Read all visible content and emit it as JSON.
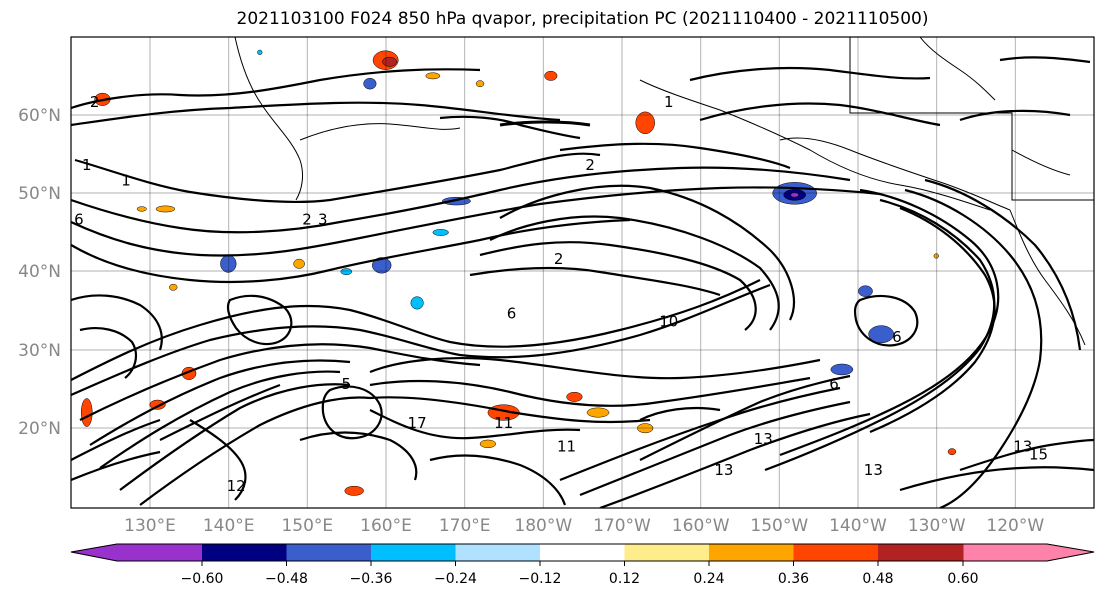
{
  "title": "2021103100 F024 850 hPa qvapor, precipitation PC (2021110400 - 2021110500)",
  "latitude_labels": [
    "60°N",
    "50°N",
    "40°N",
    "30°N",
    "20°N"
  ],
  "longitude_labels": [
    "130°E",
    "140°E",
    "150°E",
    "160°E",
    "170°E",
    "180°W",
    "170°W",
    "160°W",
    "150°W",
    "140°W",
    "130°W",
    "120°W"
  ],
  "colorbar": {
    "colors": [
      "#9932cc",
      "#000080",
      "#3a5fcd",
      "#00bfff",
      "#b0e2ff",
      "#ffffff",
      "#ffec8b",
      "#ffa500",
      "#ff4500",
      "#b22222",
      "#ff82ab"
    ],
    "tick_labels": [
      "−0.60",
      "−0.48",
      "−0.36",
      "−0.24",
      "−0.12",
      "0.12",
      "0.24",
      "0.36",
      "0.48",
      "0.60"
    ],
    "extend": "both"
  },
  "contour_labels": [
    {
      "text": "2",
      "lon": 123,
      "lat": 61
    },
    {
      "text": "1",
      "lon": 196,
      "lat": 61
    },
    {
      "text": "1",
      "lon": 122,
      "lat": 53
    },
    {
      "text": "1",
      "lon": 127,
      "lat": 51
    },
    {
      "text": "2",
      "lon": 186,
      "lat": 53
    },
    {
      "text": "3",
      "lon": 152,
      "lat": 46
    },
    {
      "text": "2",
      "lon": 150,
      "lat": 46
    },
    {
      "text": "2",
      "lon": 182,
      "lat": 41
    },
    {
      "text": "6",
      "lon": 121,
      "lat": 46
    },
    {
      "text": "6",
      "lon": 176,
      "lat": 34
    },
    {
      "text": "10",
      "lon": 196,
      "lat": 33
    },
    {
      "text": "6",
      "lon": 225,
      "lat": 31
    },
    {
      "text": "6",
      "lon": 217,
      "lat": 25
    },
    {
      "text": "13",
      "lon": 208,
      "lat": 18
    },
    {
      "text": "13",
      "lon": 203,
      "lat": 14
    },
    {
      "text": "13",
      "lon": 222,
      "lat": 14
    },
    {
      "text": "11",
      "lon": 183,
      "lat": 17
    },
    {
      "text": "11",
      "lon": 175,
      "lat": 20
    },
    {
      "text": "17",
      "lon": 164,
      "lat": 20
    },
    {
      "text": "12",
      "lon": 141,
      "lat": 12
    },
    {
      "text": "13",
      "lon": 241,
      "lat": 17
    },
    {
      "text": "15",
      "lon": 243,
      "lat": 16
    },
    {
      "text": "5",
      "lon": 155,
      "lat": 25
    }
  ],
  "precip_patches": [
    {
      "lon": 132,
      "lat": 48,
      "rx": 1.2,
      "ry": 0.4,
      "level": "0.24"
    },
    {
      "lon": 129,
      "lat": 48,
      "rx": 0.6,
      "ry": 0.3,
      "level": "0.24"
    },
    {
      "lon": 124,
      "lat": 62,
      "rx": 1.0,
      "ry": 0.8,
      "level": "0.36"
    },
    {
      "lon": 160,
      "lat": 67,
      "rx": 1.6,
      "ry": 1.2,
      "level": "0.36"
    },
    {
      "lon": 160.5,
      "lat": 66.8,
      "rx": 0.9,
      "ry": 0.6,
      "level": "0.48"
    },
    {
      "lon": 158,
      "lat": 64,
      "rx": 0.8,
      "ry": 0.7,
      "level": "-0.36"
    },
    {
      "lon": 166,
      "lat": 65,
      "rx": 0.9,
      "ry": 0.4,
      "level": "0.24"
    },
    {
      "lon": 172,
      "lat": 64,
      "rx": 0.5,
      "ry": 0.4,
      "level": "0.24"
    },
    {
      "lon": 181,
      "lat": 65,
      "rx": 0.8,
      "ry": 0.6,
      "level": "0.36"
    },
    {
      "lon": 193,
      "lat": 59,
      "rx": 1.2,
      "ry": 1.4,
      "level": "0.36"
    },
    {
      "lon": 144,
      "lat": 68,
      "rx": 0.3,
      "ry": 0.3,
      "level": "-0.24"
    },
    {
      "lon": 169,
      "lat": 49,
      "rx": 1.8,
      "ry": 0.5,
      "level": "-0.36"
    },
    {
      "lon": 167,
      "lat": 45,
      "rx": 1.0,
      "ry": 0.4,
      "level": "-0.24"
    },
    {
      "lon": 140,
      "lat": 41,
      "rx": 1.0,
      "ry": 1.1,
      "level": "-0.36"
    },
    {
      "lon": 149,
      "lat": 41,
      "rx": 0.7,
      "ry": 0.6,
      "level": "0.24"
    },
    {
      "lon": 159.5,
      "lat": 40.8,
      "rx": 1.2,
      "ry": 1.0,
      "level": "-0.36"
    },
    {
      "lon": 164,
      "lat": 36,
      "rx": 0.8,
      "ry": 0.8,
      "level": "-0.24"
    },
    {
      "lon": 212,
      "lat": 50,
      "rx": 2.8,
      "ry": 1.4,
      "level": "-0.36"
    },
    {
      "lon": 212,
      "lat": 49.8,
      "rx": 1.4,
      "ry": 0.7,
      "level": "-0.48"
    },
    {
      "lon": 212,
      "lat": 49.8,
      "rx": 0.5,
      "ry": 0.3,
      "level": "-0.60"
    },
    {
      "lon": 221,
      "lat": 37.5,
      "rx": 0.9,
      "ry": 0.7,
      "level": "-0.36"
    },
    {
      "lon": 223,
      "lat": 32,
      "rx": 1.6,
      "ry": 1.1,
      "level": "-0.36"
    },
    {
      "lon": 218,
      "lat": 27.5,
      "rx": 1.4,
      "ry": 0.7,
      "level": "-0.36"
    },
    {
      "lon": 230,
      "lat": 42,
      "rx": 0.3,
      "ry": 0.3,
      "level": "0.24"
    },
    {
      "lon": 175,
      "lat": 22,
      "rx": 2.0,
      "ry": 1.0,
      "level": "0.36"
    },
    {
      "lon": 184,
      "lat": 24,
      "rx": 1.0,
      "ry": 0.6,
      "level": "0.36"
    },
    {
      "lon": 187,
      "lat": 22,
      "rx": 1.4,
      "ry": 0.6,
      "level": "0.24"
    },
    {
      "lon": 193,
      "lat": 20,
      "rx": 1.0,
      "ry": 0.6,
      "level": "0.24"
    },
    {
      "lon": 131,
      "lat": 23,
      "rx": 1.0,
      "ry": 0.6,
      "level": "0.36"
    },
    {
      "lon": 135,
      "lat": 27,
      "rx": 0.9,
      "ry": 0.8,
      "level": "0.36"
    },
    {
      "lon": 122,
      "lat": 22,
      "rx": 0.7,
      "ry": 1.8,
      "level": "0.36"
    },
    {
      "lon": 156,
      "lat": 12,
      "rx": 1.2,
      "ry": 0.6,
      "level": "0.36"
    },
    {
      "lon": 173,
      "lat": 18,
      "rx": 1.0,
      "ry": 0.5,
      "level": "0.24"
    },
    {
      "lon": 155,
      "lat": 40,
      "rx": 0.7,
      "ry": 0.4,
      "level": "-0.24"
    },
    {
      "lon": 133,
      "lat": 38,
      "rx": 0.5,
      "ry": 0.4,
      "level": "0.24"
    },
    {
      "lon": 276,
      "lat": 61,
      "rx": 0.8,
      "ry": 1.1,
      "level": "0.36"
    },
    {
      "lon": 275.8,
      "lat": 61,
      "rx": 0.45,
      "ry": 0.7,
      "level": "0.48"
    },
    {
      "lon": 271,
      "lat": 59,
      "rx": 1.0,
      "ry": 0.6,
      "level": "-0.36"
    },
    {
      "lon": 279,
      "lat": 58,
      "rx": 0.7,
      "ry": 1.2,
      "level": "-0.36"
    },
    {
      "lon": 255,
      "lat": 67,
      "rx": 0.4,
      "ry": 0.4,
      "level": "-0.24"
    },
    {
      "lon": 268,
      "lat": 64,
      "rx": 0.8,
      "ry": 0.6,
      "level": "-0.24"
    },
    {
      "lon": 266,
      "lat": 63,
      "rx": 0.8,
      "ry": 0.4,
      "level": "0.24"
    },
    {
      "lon": 258,
      "lat": 51,
      "rx": 0.4,
      "ry": 0.3,
      "level": "-0.24"
    },
    {
      "lon": 232,
      "lat": 17,
      "rx": 0.5,
      "ry": 0.4,
      "level": "0.36"
    },
    {
      "lon": 268,
      "lat": 26,
      "rx": 0.8,
      "ry": 0.8,
      "level": "-0.36"
    },
    {
      "lon": 271,
      "lat": 16,
      "rx": 1.1,
      "ry": 0.5,
      "level": "0.24"
    },
    {
      "lon": 266,
      "lat": 13,
      "rx": 0.9,
      "ry": 0.4,
      "level": "0.24"
    }
  ]
}
